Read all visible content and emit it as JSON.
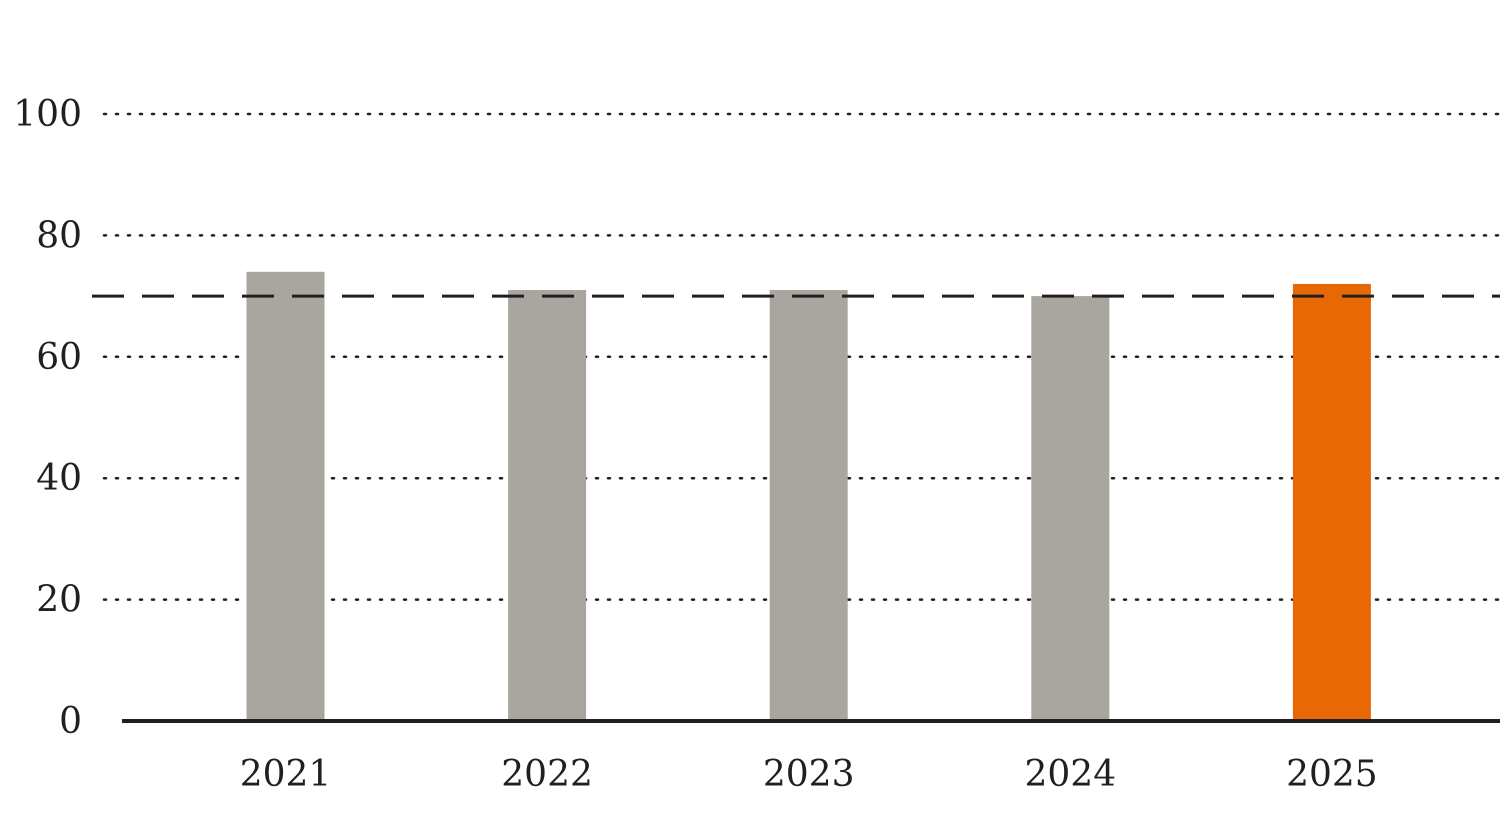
{
  "chart_data": {
    "type": "bar",
    "title": "",
    "xlabel": "",
    "ylabel": "",
    "categories": [
      "2021",
      "2022",
      "2023",
      "2024",
      "2025"
    ],
    "values": [
      74,
      71,
      71,
      70,
      72
    ],
    "ylim": [
      0,
      100
    ],
    "yticks": [
      "0",
      "20",
      "40",
      "60",
      "80",
      "100"
    ],
    "reference_line": 70,
    "grid": "dotted horizontal",
    "colors": {
      "default_bar": "#a9a6a0",
      "highlight_bar": "#e86805",
      "highlight_index": 4,
      "axis": "#231f20",
      "reference_line": "#231f20",
      "grid": "#231f20"
    }
  }
}
